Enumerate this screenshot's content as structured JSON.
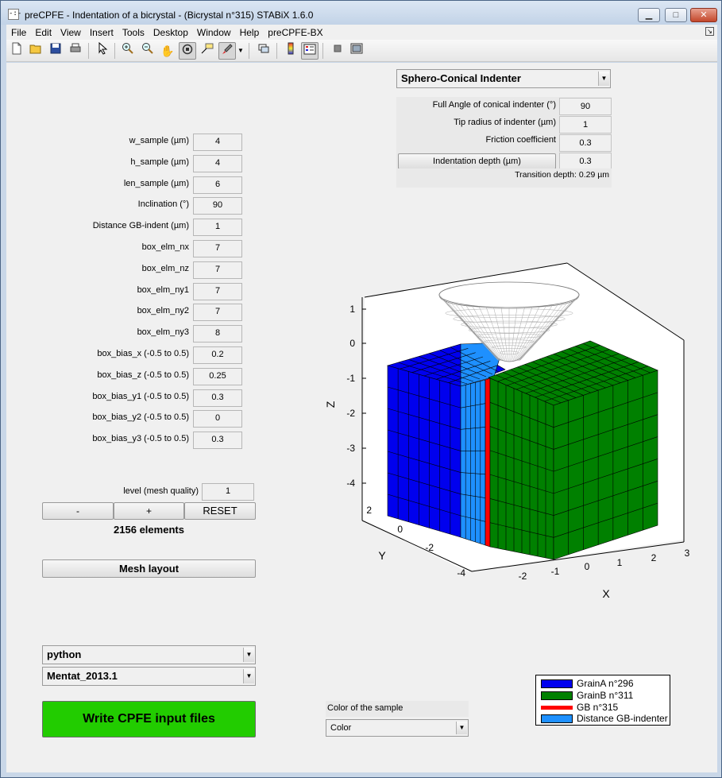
{
  "window": {
    "title": "preCPFE - Indentation of a bicrystal -  (Bicrystal n°315) STABiX 1.6.0",
    "app_icon": "-:-",
    "buttons": [
      "minimize",
      "maximize",
      "close"
    ]
  },
  "menubar": {
    "items": [
      "File",
      "Edit",
      "View",
      "Insert",
      "Tools",
      "Desktop",
      "Window",
      "Help",
      "preCPFE-BX"
    ]
  },
  "toolbar": {
    "icons": [
      "new-figure-icon",
      "open-file-icon",
      "save-icon",
      "print-icon",
      "pointer-icon",
      "zoom-in-icon",
      "zoom-out-icon",
      "pan-icon",
      "rotate-3d-icon",
      "data-cursor-icon",
      "brush-icon",
      "link-plot-icon",
      "colorbar-icon",
      "legend-icon",
      "hide-plot-tools-icon",
      "show-plot-tools-icon"
    ]
  },
  "indenter": {
    "selected": "Sphero-Conical Indenter",
    "params": [
      {
        "label": "Full Angle of conical indenter (°)",
        "value": "90"
      },
      {
        "label": "Tip radius of indenter (µm)",
        "value": "1"
      },
      {
        "label": "Friction coefficient",
        "value": "0.3"
      }
    ],
    "depth_button": "Indentation depth (µm)",
    "depth_value": "0.3",
    "transition": "Transition depth: 0.29 µm"
  },
  "sample": {
    "params": [
      {
        "label": "w_sample (µm)",
        "value": "4"
      },
      {
        "label": "h_sample (µm)",
        "value": "4"
      },
      {
        "label": "len_sample (µm)",
        "value": "6"
      },
      {
        "label": "Inclination (°)",
        "value": "90"
      },
      {
        "label": "Distance GB-indent (µm)",
        "value": "1"
      },
      {
        "label": "box_elm_nx",
        "value": "7"
      },
      {
        "label": "box_elm_nz",
        "value": "7"
      },
      {
        "label": "box_elm_ny1",
        "value": "7"
      },
      {
        "label": "box_elm_ny2",
        "value": "7"
      },
      {
        "label": "box_elm_ny3",
        "value": "8"
      },
      {
        "label": "box_bias_x (-0.5 to 0.5)",
        "value": "0.2"
      },
      {
        "label": "box_bias_z (-0.5 to 0.5)",
        "value": "0.25"
      },
      {
        "label": "box_bias_y1 (-0.5 to 0.5)",
        "value": "0.3"
      },
      {
        "label": "box_bias_y2 (-0.5 to 0.5)",
        "value": "0"
      },
      {
        "label": "box_bias_y3 (-0.5 to 0.5)",
        "value": "0.3"
      }
    ]
  },
  "mesh": {
    "level_label": "level (mesh quality)",
    "level_value": "1",
    "minus": "-",
    "plus": "+",
    "reset": "RESET",
    "elements": "2156 elements",
    "layout_button": "Mesh layout"
  },
  "output": {
    "language": "python",
    "software": "Mentat_2013.1",
    "write_button": "Write CPFE  input files",
    "write_color": "#22cc00"
  },
  "color_sample": {
    "label": "Color of the sample",
    "selected": "Color"
  },
  "plot": {
    "axes": {
      "z_label": "Z",
      "y_label": "Y",
      "x_label": "X",
      "z_ticks": [
        "1",
        "0",
        "-1",
        "-2",
        "-3",
        "-4"
      ],
      "y_ticks": [
        "2",
        "0",
        "-2",
        "-4"
      ],
      "x_ticks": [
        "-2",
        "-1",
        "0",
        "1",
        "2",
        "3"
      ]
    },
    "colors": {
      "grainA": "#0000ee",
      "grainB": "#008000",
      "gb": "#ff0000",
      "distance": "#1e90ff",
      "indenter": "#ffffff"
    }
  },
  "legend": {
    "entries": [
      {
        "label": "GrainA n°296",
        "color": "#0000ee",
        "kind": "patch"
      },
      {
        "label": "GrainB n°311",
        "color": "#008000",
        "kind": "patch"
      },
      {
        "label": "GB n°315",
        "color": "#ff0000",
        "kind": "line"
      },
      {
        "label": "Distance GB-indenter",
        "color": "#1e90ff",
        "kind": "patch"
      }
    ]
  }
}
